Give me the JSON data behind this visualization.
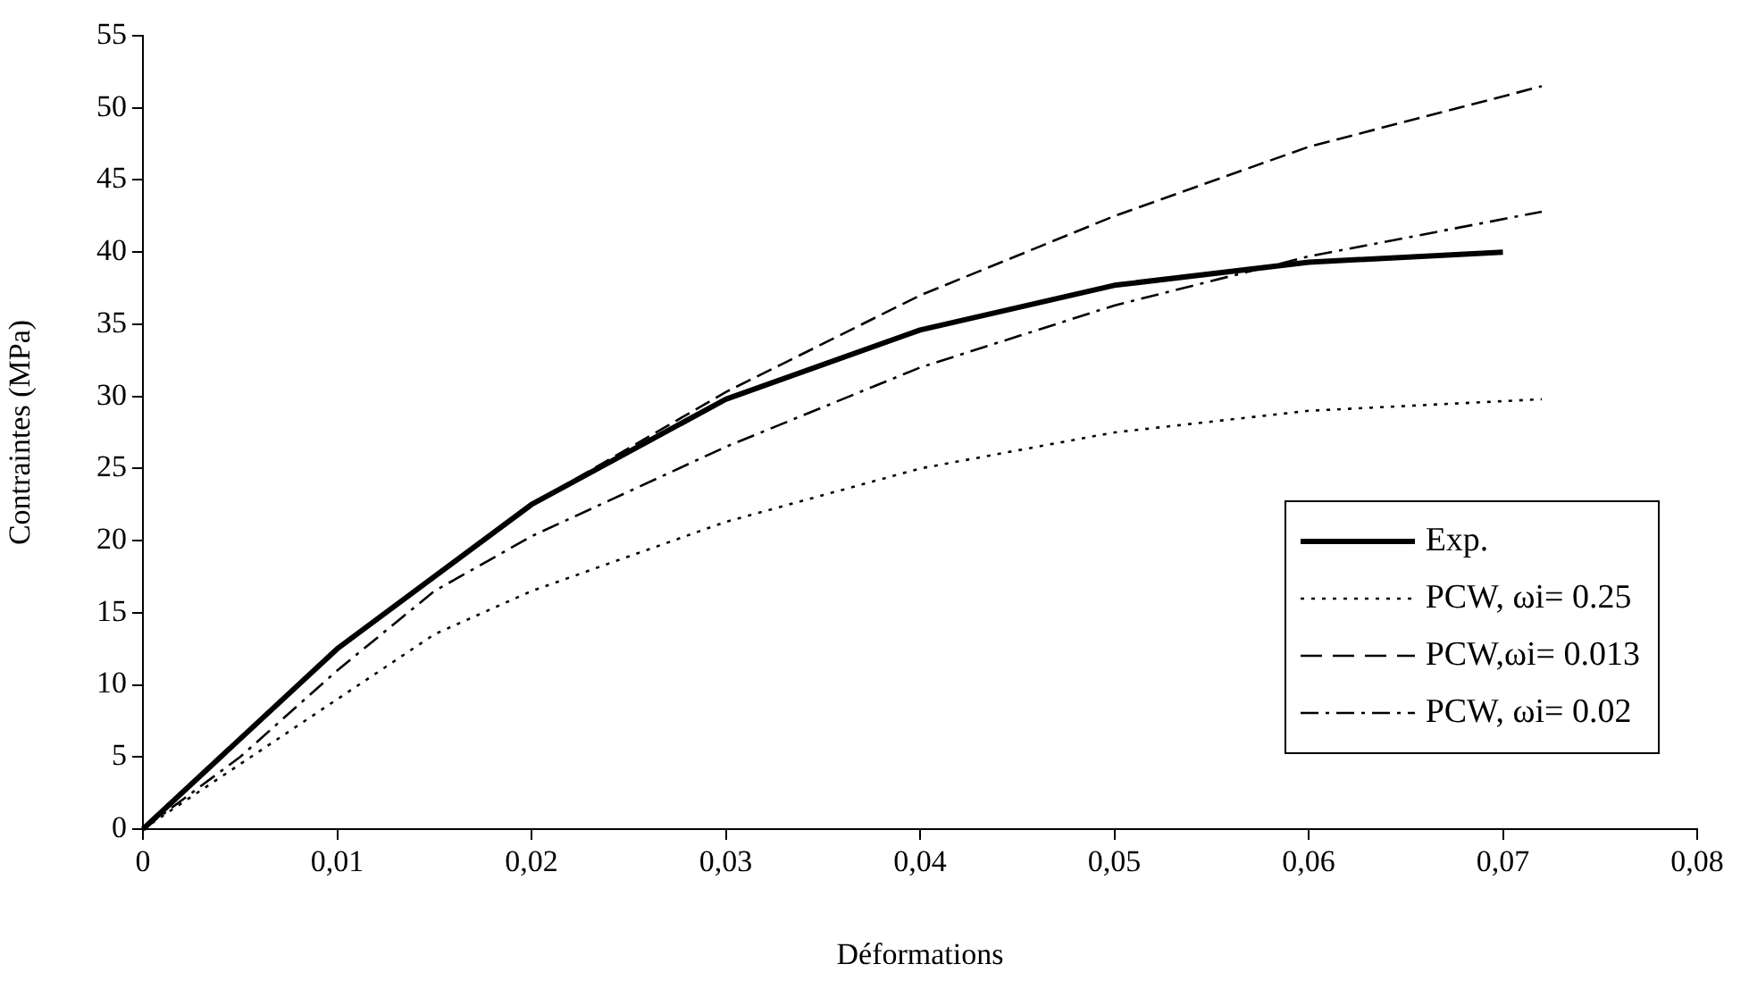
{
  "chart_data": {
    "type": "line",
    "xlabel": "Déformations",
    "ylabel": "Contraintes (MPa)",
    "xlim": [
      0,
      0.08
    ],
    "xticks": [
      0,
      {
        "value": 0.01,
        "label": "0,01"
      },
      {
        "value": 0.02,
        "label": "0,02"
      },
      {
        "value": 0.03,
        "label": "0,03"
      },
      {
        "value": 0.04,
        "label": "0,04"
      },
      {
        "value": 0.05,
        "label": "0,05"
      },
      {
        "value": 0.06,
        "label": "0,06"
      },
      {
        "value": 0.07,
        "label": "0,07"
      },
      {
        "value": 0.08,
        "label": "0,08"
      }
    ],
    "ylim": [
      0,
      55
    ],
    "yticks": [
      0,
      5,
      10,
      15,
      20,
      25,
      30,
      35,
      40,
      45,
      50,
      55
    ],
    "grid": false,
    "legend": "bottom right",
    "marker": "none",
    "series": [
      {
        "name": "Exp.",
        "color": "#000000",
        "line_style": "solid",
        "x": [
          0,
          0.01,
          0.02,
          0.03,
          0.04,
          0.05,
          0.06,
          0.07
        ],
        "values": [
          0,
          12.5,
          22.5,
          29.8,
          34.6,
          37.7,
          39.3,
          40
        ]
      },
      {
        "name": "PCW, ωi= 0.25",
        "color": "#000000",
        "line_style": "dotted",
        "x": [
          0,
          0.005,
          0.01,
          0.015,
          0.02,
          0.03,
          0.04,
          0.05,
          0.06,
          0.072
        ],
        "values": [
          0,
          4.5,
          9,
          13.5,
          16.5,
          21.3,
          25,
          27.5,
          29,
          29.8
        ]
      },
      {
        "name": "PCW,ωi= 0.013",
        "color": "#000000",
        "line_style": "dashed",
        "x": [
          0,
          0.01,
          0.02,
          0.03,
          0.04,
          0.05,
          0.06,
          0.072
        ],
        "values": [
          0,
          12.5,
          22.5,
          30.3,
          37,
          42.5,
          47.3,
          51.5
        ]
      },
      {
        "name": "PCW, ωi= 0.02",
        "color": "#000000",
        "line_style": "dashdot",
        "x": [
          0,
          0.005,
          0.01,
          0.015,
          0.02,
          0.03,
          0.04,
          0.05,
          0.06,
          0.072
        ],
        "values": [
          0,
          5,
          11,
          16.5,
          20.3,
          26.5,
          32,
          36.3,
          39.7,
          42.8
        ]
      }
    ]
  }
}
